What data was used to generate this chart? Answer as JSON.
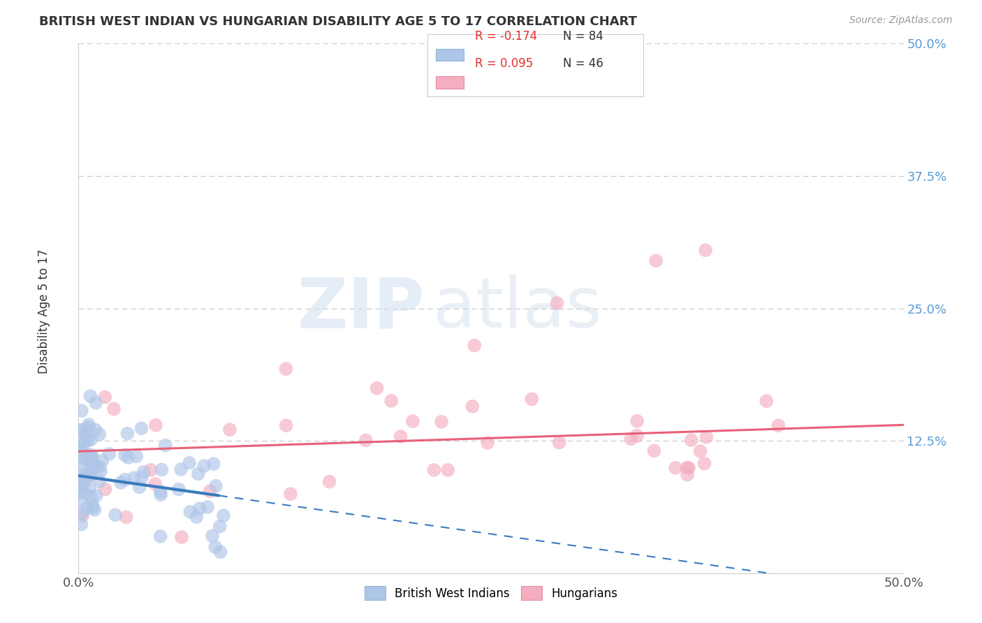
{
  "title": "BRITISH WEST INDIAN VS HUNGARIAN DISABILITY AGE 5 TO 17 CORRELATION CHART",
  "source": "Source: ZipAtlas.com",
  "ylabel": "Disability Age 5 to 17",
  "xlim": [
    0.0,
    0.5
  ],
  "ylim": [
    0.0,
    0.5
  ],
  "xtick_labels": [
    "0.0%",
    "50.0%"
  ],
  "xtick_positions": [
    0.0,
    0.5
  ],
  "ytick_labels": [
    "12.5%",
    "25.0%",
    "37.5%",
    "50.0%"
  ],
  "ytick_positions": [
    0.125,
    0.25,
    0.375,
    0.5
  ],
  "grid_color": "#cccccc",
  "bg_color": "#ffffff",
  "watermark_zip": "ZIP",
  "watermark_atlas": "atlas",
  "legend_r1": "R = -0.174",
  "legend_n1": "N = 84",
  "legend_r2": "R = 0.095",
  "legend_n2": "N = 46",
  "series1_color": "#aec6e8",
  "series2_color": "#f4aec0",
  "line1_color": "#3a7abf",
  "line2_color": "#e8607a",
  "ytick_color": "#5b9bd5",
  "title_color": "#333333",
  "source_color": "#999999",
  "ylabel_color": "#333333",
  "bwi_label": "British West Indians",
  "hun_label": "Hungarians"
}
